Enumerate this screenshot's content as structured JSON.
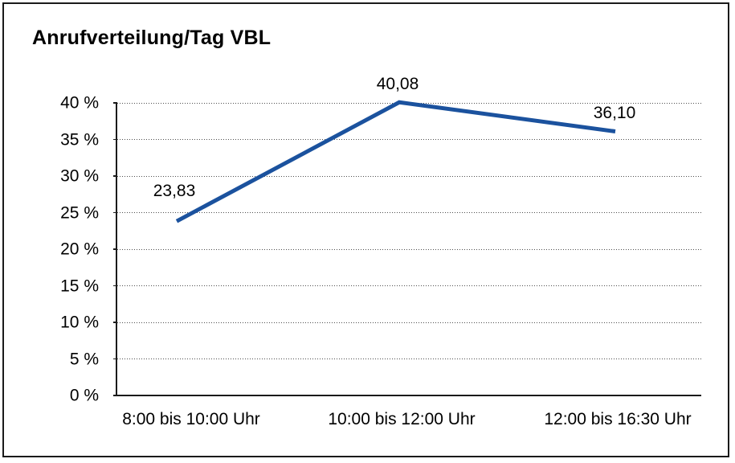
{
  "page": {
    "background": "#ffffff",
    "border_color": "#1a1a1a"
  },
  "chart_data": {
    "type": "line",
    "title": "Anrufverteilung/Tag VBL",
    "categories": [
      "8:00 bis 10:00 Uhr",
      "10:00 bis 12:00 Uhr",
      "12:00 bis 16:30 Uhr"
    ],
    "values": [
      23.83,
      40.08,
      36.1
    ],
    "point_labels": [
      "23,83",
      "40,08",
      "36,10"
    ],
    "ytick_labels": [
      "0 %",
      "5 %",
      "10 %",
      "15 %",
      "20 %",
      "25 %",
      "30 %",
      "35 %",
      "40 %"
    ],
    "ytick_values": [
      0,
      5,
      10,
      15,
      20,
      25,
      30,
      35,
      40
    ],
    "ylim": [
      0,
      40
    ],
    "ytick_step": 5,
    "xlabel": "",
    "ylabel": "",
    "grid": "horizontal-dotted",
    "legend": "none",
    "markers": "none",
    "line_color": "#1b529e",
    "grid_color": "#4d4d4d",
    "axis_color": "#1a1a1a",
    "text_color": "#000000"
  }
}
